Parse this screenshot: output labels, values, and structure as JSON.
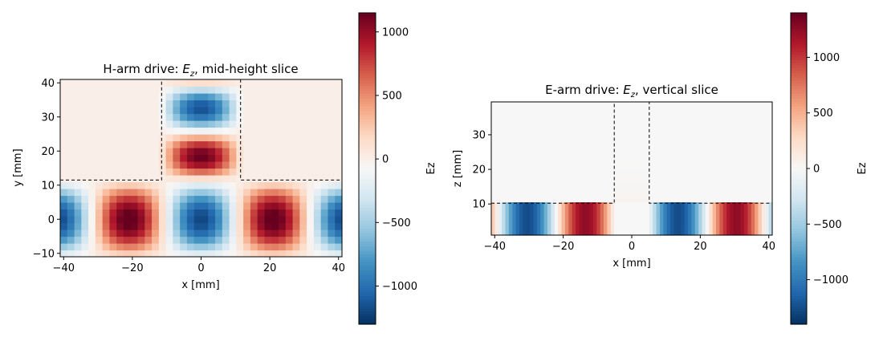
{
  "chart_data": [
    {
      "type": "heatmap",
      "title_prefix": "H-arm drive: ",
      "title_var": "E",
      "title_sub": "z",
      "title_suffix": ", mid-height slice",
      "xlabel": "x [mm]",
      "ylabel": "y [mm]",
      "xlim": [
        -41,
        41
      ],
      "ylim": [
        -11,
        41
      ],
      "xticks": [
        -40,
        -20,
        0,
        20,
        40
      ],
      "yticks": [
        -10,
        0,
        10,
        20,
        30,
        40
      ],
      "colorbar_label": "Ez",
      "colorbar_range": [
        -1300,
        1150
      ],
      "colorbar_ticks": [
        -1000,
        -500,
        0,
        500,
        1000
      ],
      "colormap": "RdBu_r",
      "field_amplitude": 1200,
      "arm_amplitude": 1150,
      "main_guide_y": [
        -11,
        11.5
      ],
      "side_arm_x": [
        -11.5,
        11.5
      ],
      "dashed_boundary": [
        [
          -41,
          11.5
        ],
        [
          -11.5,
          11.5
        ],
        [
          -11.5,
          41
        ],
        [
          11.5,
          41
        ],
        [
          11.5,
          11.5
        ],
        [
          41,
          11.5
        ]
      ]
    },
    {
      "type": "heatmap",
      "title_prefix": "E-arm drive: ",
      "title_var": "E",
      "title_sub": "z",
      "title_suffix": ", vertical slice",
      "xlabel": "x [mm]",
      "ylabel": "z [mm]",
      "xlim": [
        -41,
        41
      ],
      "ylim": [
        1,
        39.5
      ],
      "xticks": [
        -40,
        -20,
        0,
        20,
        40
      ],
      "yticks": [
        10,
        20,
        30
      ],
      "colorbar_label": "Ez",
      "colorbar_range": [
        -1400,
        1400
      ],
      "colorbar_ticks": [
        -1000,
        -500,
        0,
        500,
        1000
      ],
      "colormap": "RdBu_r",
      "field_amplitude": 1250,
      "main_guide_z": [
        1,
        10.2
      ],
      "side_arm_x": [
        -5.1,
        5.1
      ],
      "dashed_boundary": [
        [
          -41,
          10.2
        ],
        [
          -5.1,
          10.2
        ],
        [
          -5.1,
          39.5
        ],
        [
          5.1,
          39.5
        ],
        [
          5.1,
          10.2
        ],
        [
          41,
          10.2
        ]
      ]
    }
  ]
}
